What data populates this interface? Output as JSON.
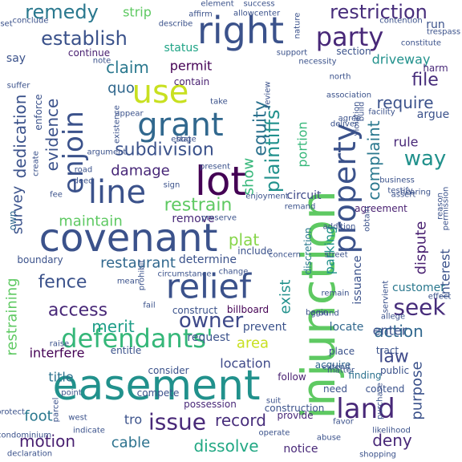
{
  "words": [
    {
      "text": "injunction",
      "color": "#5ec962"
    },
    {
      "text": "easement",
      "color": "#21918c"
    },
    {
      "text": "covenant",
      "color": "#3b528b"
    },
    {
      "text": "right",
      "color": "#3b528b"
    },
    {
      "text": "lot",
      "color": "#440154"
    },
    {
      "text": "relief",
      "color": "#3b528b"
    },
    {
      "text": "use",
      "color": "#c8e020"
    },
    {
      "text": "grant",
      "color": "#31688e"
    },
    {
      "text": "line",
      "color": "#3b528b"
    },
    {
      "text": "property",
      "color": "#3b528b"
    },
    {
      "text": "land",
      "color": "#482878"
    },
    {
      "text": "enjoin",
      "color": "#3b528b"
    },
    {
      "text": "defendants'",
      "color": "#35b779"
    },
    {
      "text": "party",
      "color": "#482878"
    },
    {
      "text": "plaintiffs'",
      "color": "#21918c"
    },
    {
      "text": "issue",
      "color": "#482878"
    },
    {
      "text": "owner",
      "color": "#3e4989"
    },
    {
      "text": "restriction",
      "color": "#472d7b"
    },
    {
      "text": "remedy",
      "color": "#2a788e"
    },
    {
      "text": "establish",
      "color": "#3b528b"
    },
    {
      "text": "complaint",
      "color": "#2a788e"
    },
    {
      "text": "equity",
      "color": "#2c728e"
    },
    {
      "text": "evidence",
      "color": "#3b528b"
    },
    {
      "text": "subdivision",
      "color": "#3b528b"
    },
    {
      "text": "restrain",
      "color": "#5ec962"
    },
    {
      "text": "dedication",
      "color": "#3b528b"
    },
    {
      "text": "seek",
      "color": "#472d7b"
    },
    {
      "text": "way",
      "color": "#21918c"
    },
    {
      "text": "file",
      "color": "#472d7b"
    },
    {
      "text": "require",
      "color": "#3b528b"
    },
    {
      "text": "access",
      "color": "#482878"
    },
    {
      "text": "fence",
      "color": "#3b528b"
    },
    {
      "text": "restraining",
      "color": "#5ec962"
    },
    {
      "text": "merit",
      "color": "#1f9e89"
    },
    {
      "text": "claim",
      "color": "#2a788e"
    },
    {
      "text": "damage",
      "color": "#482878"
    },
    {
      "text": "maintain",
      "color": "#5ec962"
    },
    {
      "text": "restaurant",
      "color": "#31688e"
    },
    {
      "text": "action",
      "color": "#31688e"
    },
    {
      "text": "record",
      "color": "#472d7b"
    },
    {
      "text": "law",
      "color": "#3e4989"
    },
    {
      "text": "motion",
      "color": "#481f70"
    },
    {
      "text": "foot",
      "color": "#2a788e"
    },
    {
      "text": "dissolve",
      "color": "#22a884"
    },
    {
      "text": "deny",
      "color": "#482878"
    },
    {
      "text": "dispute",
      "color": "#481f70"
    },
    {
      "text": "purpose",
      "color": "#3b528b"
    },
    {
      "text": "show",
      "color": "#35b779"
    },
    {
      "text": "plat",
      "color": "#86d549"
    },
    {
      "text": "area",
      "color": "#c8e020"
    },
    {
      "text": "cable",
      "color": "#2c728e"
    },
    {
      "text": "interfere",
      "color": "#440154"
    },
    {
      "text": "parking",
      "color": "#21918c"
    },
    {
      "text": "title",
      "color": "#2c728e"
    },
    {
      "text": "enter",
      "color": "#3b528b"
    },
    {
      "text": "survey",
      "color": "#3b528b"
    },
    {
      "text": "exist",
      "color": "#21918c"
    },
    {
      "text": "location",
      "color": "#3e4989"
    },
    {
      "text": "interest",
      "color": "#3b528b"
    },
    {
      "text": "strip",
      "color": "#5ec962"
    },
    {
      "text": "permit",
      "color": "#440154"
    },
    {
      "text": "driveway",
      "color": "#21918c"
    },
    {
      "text": "quo",
      "color": "#31688e"
    },
    {
      "text": "status",
      "color": "#20a486"
    },
    {
      "text": "portion",
      "color": "#35b779"
    },
    {
      "text": "rule",
      "color": "#482878"
    },
    {
      "text": "argue",
      "color": "#3b528b"
    },
    {
      "text": "remove",
      "color": "#482878"
    },
    {
      "text": "determine",
      "color": "#3b528b"
    },
    {
      "text": "circuit",
      "color": "#3e4989"
    },
    {
      "text": "customer",
      "color": "#2a788e"
    },
    {
      "text": "locate",
      "color": "#31688e"
    },
    {
      "text": "issuance",
      "color": "#3b528b"
    },
    {
      "text": "agreement",
      "color": "#481f70"
    },
    {
      "text": "tro",
      "color": "#3b528b"
    },
    {
      "text": "request",
      "color": "#3b528b"
    },
    {
      "text": "prevent",
      "color": "#3b528b"
    },
    {
      "text": "finding",
      "color": "#2c728e"
    },
    {
      "text": "need",
      "color": "#3b528b"
    },
    {
      "text": "notice",
      "color": "#482878"
    },
    {
      "text": "provide",
      "color": "#482878"
    },
    {
      "text": "discretion",
      "color": "#2a788e"
    },
    {
      "text": "say",
      "color": "#3b528b"
    },
    {
      "text": "harm",
      "color": "#482878"
    },
    {
      "text": "run",
      "color": "#3b528b"
    },
    {
      "text": "enforce",
      "color": "#3b528b"
    },
    {
      "text": "continue",
      "color": "#481f70"
    },
    {
      "text": "contain",
      "color": "#481f70"
    },
    {
      "text": "own",
      "color": "#31688e"
    },
    {
      "text": "public",
      "color": "#3b528b"
    },
    {
      "text": "contend",
      "color": "#3b528b"
    },
    {
      "text": "construction",
      "color": "#3b528b"
    },
    {
      "text": "possession",
      "color": "#482878"
    },
    {
      "text": "parcel",
      "color": "#3b528b"
    },
    {
      "text": "consider",
      "color": "#3b528b"
    },
    {
      "text": "follow",
      "color": "#481f70"
    },
    {
      "text": "acquire",
      "color": "#31688e"
    },
    {
      "text": "place",
      "color": "#3b528b"
    },
    {
      "text": "tract",
      "color": "#3b528b"
    },
    {
      "text": "boundary",
      "color": "#3b528b"
    },
    {
      "text": "include",
      "color": "#3b528b"
    },
    {
      "text": "billboard",
      "color": "#440154"
    },
    {
      "text": "construct",
      "color": "#3b528b"
    },
    {
      "text": "entitle",
      "color": "#3b528b"
    },
    {
      "text": "compete",
      "color": "#3b528b"
    },
    {
      "text": "indicate",
      "color": "#3b528b"
    },
    {
      "text": "section",
      "color": "#3b528b"
    },
    {
      "text": "north",
      "color": "#3b528b"
    },
    {
      "text": "agree",
      "color": "#3b528b"
    },
    {
      "text": "deliver",
      "color": "#3b528b"
    },
    {
      "text": "business",
      "color": "#3b528b"
    },
    {
      "text": "hearing",
      "color": "#3b528b"
    },
    {
      "text": "assert",
      "color": "#3b528b"
    },
    {
      "text": "road",
      "color": "#3b528b"
    },
    {
      "text": "estate",
      "color": "#3b528b"
    },
    {
      "text": "present",
      "color": "#3b528b"
    },
    {
      "text": "take",
      "color": "#3b528b"
    },
    {
      "text": "hog",
      "color": "#3b528b"
    },
    {
      "text": "sign",
      "color": "#3b528b"
    },
    {
      "text": "deed",
      "color": "#3b528b"
    },
    {
      "text": "street",
      "color": "#3b528b"
    },
    {
      "text": "remain",
      "color": "#3b528b"
    },
    {
      "text": "extend",
      "color": "#3b528b"
    },
    {
      "text": "matter",
      "color": "#3b528b"
    },
    {
      "text": "allege",
      "color": "#3b528b"
    },
    {
      "text": "operate",
      "color": "#3b528b"
    },
    {
      "text": "abuse",
      "color": "#3b528b"
    },
    {
      "text": "shopping",
      "color": "#3b528b"
    },
    {
      "text": "declaration",
      "color": "#3b528b"
    },
    {
      "text": "point",
      "color": "#3b528b"
    },
    {
      "text": "suit",
      "color": "#3b528b"
    },
    {
      "text": "describe",
      "color": "#3b528b"
    },
    {
      "text": "element",
      "color": "#3b528b"
    },
    {
      "text": "support",
      "color": "#3b528b"
    },
    {
      "text": "center",
      "color": "#3b528b"
    },
    {
      "text": "success",
      "color": "#3b528b"
    },
    {
      "text": "allow",
      "color": "#3b528b"
    },
    {
      "text": "affirm",
      "color": "#3b528b"
    },
    {
      "text": "conclude",
      "color": "#3b528b"
    },
    {
      "text": "trespass",
      "color": "#3b528b"
    },
    {
      "text": "violation",
      "color": "#3b528b"
    },
    {
      "text": "testify",
      "color": "#3b528b"
    },
    {
      "text": "obtain",
      "color": "#3b528b"
    },
    {
      "text": "addition",
      "color": "#3b528b"
    },
    {
      "text": "permission",
      "color": "#3b528b"
    },
    {
      "text": "reason",
      "color": "#3b528b"
    },
    {
      "text": "constitute",
      "color": "#3b528b"
    },
    {
      "text": "enjoyment",
      "color": "#3b528b"
    },
    {
      "text": "preserve",
      "color": "#3b528b"
    },
    {
      "text": "argument",
      "color": "#3b528b"
    },
    {
      "text": "create",
      "color": "#3b528b"
    },
    {
      "text": "fee",
      "color": "#3b528b"
    },
    {
      "text": "existence",
      "color": "#3b528b"
    },
    {
      "text": "suffer",
      "color": "#3b528b"
    },
    {
      "text": "note",
      "color": "#3b528b"
    },
    {
      "text": "appear",
      "color": "#3b528b"
    },
    {
      "text": "change",
      "color": "#3b528b"
    },
    {
      "text": "mean",
      "color": "#3b528b"
    },
    {
      "text": "fail",
      "color": "#3b528b"
    },
    {
      "text": "prohibit",
      "color": "#3b528b"
    },
    {
      "text": "raise",
      "color": "#3b528b"
    },
    {
      "text": "protect",
      "color": "#3b528b"
    },
    {
      "text": "condominium",
      "color": "#3b528b"
    },
    {
      "text": "west",
      "color": "#3b528b"
    },
    {
      "text": "favor",
      "color": "#3b528b"
    },
    {
      "text": "likelihood",
      "color": "#3b528b"
    },
    {
      "text": "ground",
      "color": "#3b528b"
    },
    {
      "text": "begin",
      "color": "#3b528b"
    },
    {
      "text": "purchase",
      "color": "#3b528b"
    },
    {
      "text": "build",
      "color": "#3b528b"
    },
    {
      "text": "necessity",
      "color": "#3b528b"
    },
    {
      "text": "association",
      "color": "#3b528b"
    },
    {
      "text": "nature",
      "color": "#3b528b"
    },
    {
      "text": "facility",
      "color": "#3b528b"
    },
    {
      "text": "review",
      "color": "#3b528b"
    },
    {
      "text": "concern",
      "color": "#3b528b"
    },
    {
      "text": "circumstance",
      "color": "#3b528b"
    },
    {
      "text": "remand",
      "color": "#3b528b"
    },
    {
      "text": "servient",
      "color": "#3b528b"
    },
    {
      "text": "effect",
      "color": "#3b528b"
    },
    {
      "text": "set",
      "color": "#3b528b"
    },
    {
      "text": "contention",
      "color": "#3b528b"
    }
  ]
}
